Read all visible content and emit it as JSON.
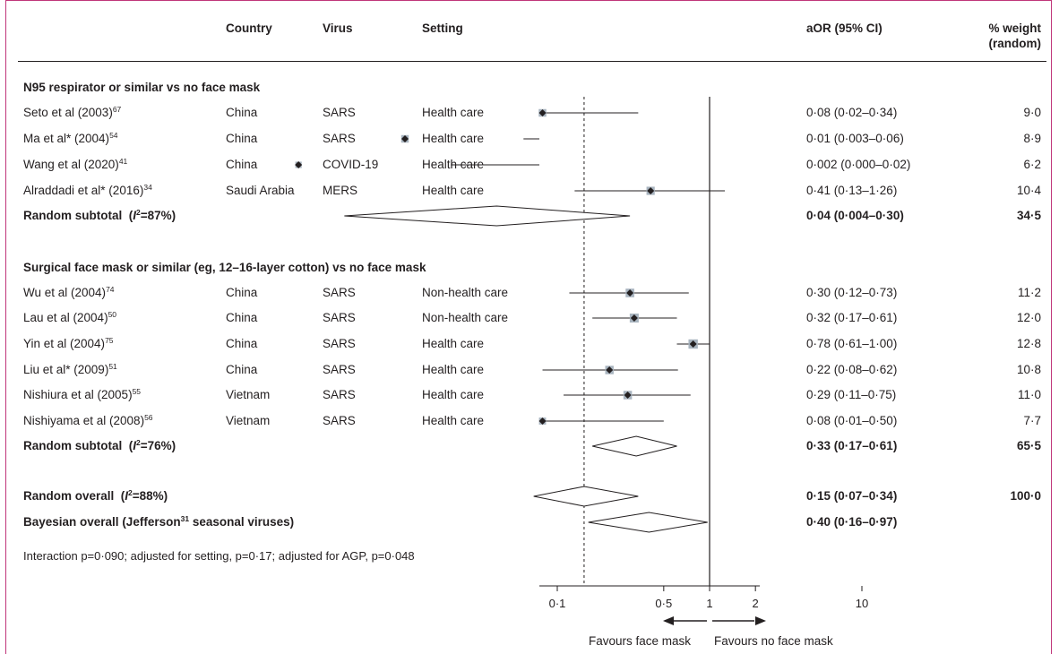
{
  "headers": {
    "country": "Country",
    "virus": "Virus",
    "setting": "Setting",
    "aor": "aOR (95% CI)",
    "weight_line1": "% weight",
    "weight_line2": "(random)"
  },
  "groups": [
    {
      "title": "N95 respirator or similar vs no face mask",
      "studies": [
        {
          "study": "Seto et al (2003)",
          "ref": "67",
          "country": "China",
          "virus": "SARS",
          "setting": "Health care",
          "aor_text": "0·08 (0·02–0·34)",
          "weight": "9·0"
        },
        {
          "study": "Ma et al* (2004)",
          "ref": "54",
          "country": "China",
          "virus": "SARS",
          "setting": "Health care",
          "aor_text": "0·01 (0·003–0·06)",
          "weight": "8·9"
        },
        {
          "study": "Wang et al (2020)",
          "ref": "41",
          "country": "China",
          "virus": "COVID-19",
          "setting": "Health care",
          "aor_text": "0·002 (0·000–0·02)",
          "weight": "6·2"
        },
        {
          "study": "Alraddadi et al* (2016)",
          "ref": "34",
          "country": "Saudi Arabia",
          "virus": "MERS",
          "setting": "Health care",
          "aor_text": "0·41 (0·13–1·26)",
          "weight": "10·4"
        }
      ],
      "subtotal": {
        "label": "Random subtotal",
        "i2": "=87%)",
        "aor_text": "0·04 (0·004–0·30)",
        "weight": "34·5"
      }
    },
    {
      "title": "Surgical face mask or similar (eg, 12–16-layer cotton) vs no face mask",
      "studies": [
        {
          "study": "Wu et al (2004)",
          "ref": "74",
          "country": "China",
          "virus": "SARS",
          "setting": "Non-health care",
          "aor_text": "0·30 (0·12–0·73)",
          "weight": "11·2"
        },
        {
          "study": "Lau et al (2004)",
          "ref": "50",
          "country": "China",
          "virus": "SARS",
          "setting": "Non-health care",
          "aor_text": "0·32 (0·17–0·61)",
          "weight": "12·0"
        },
        {
          "study": "Yin et al (2004)",
          "ref": "75",
          "country": "China",
          "virus": "SARS",
          "setting": "Health care",
          "aor_text": "0·78 (0·61–1·00)",
          "weight": "12·8"
        },
        {
          "study": "Liu et al* (2009)",
          "ref": "51",
          "country": "China",
          "virus": "SARS",
          "setting": "Health care",
          "aor_text": "0·22 (0·08–0·62)",
          "weight": "10·8"
        },
        {
          "study": "Nishiura et al (2005)",
          "ref": "55",
          "country": "Vietnam",
          "virus": "SARS",
          "setting": "Health care",
          "aor_text": "0·29 (0·11–0·75)",
          "weight": "11·0"
        },
        {
          "study": "Nishiyama et al (2008)",
          "ref": "56",
          "country": "Vietnam",
          "virus": "SARS",
          "setting": "Health care",
          "aor_text": "0·08 (0·01–0·50)",
          "weight": "7·7"
        }
      ],
      "subtotal": {
        "label": "Random subtotal",
        "i2": "=76%)",
        "aor_text": "0·33 (0·17–0·61)",
        "weight": "65·5"
      }
    }
  ],
  "overall": {
    "label": "Random overall",
    "i2": "=88%)",
    "aor_text": "0·15 (0·07–0·34)",
    "weight": "100·0"
  },
  "bayesian": {
    "label_pre": "Bayesian overall (Jefferson",
    "ref": "31",
    "label_post": " seasonal viruses)",
    "aor_text": "0·40 (0·16–0·97)"
  },
  "footnote": "Interaction p=0·090; adjusted for setting, p=0·17; adjusted for AGP, p=0·048",
  "axis": {
    "ticks": [
      "0·1",
      "0·5",
      "1",
      "2",
      "10"
    ],
    "favours_left": "Favours face mask",
    "favours_right": "Favours no face mask"
  },
  "colors": {
    "frame": "#c0357a",
    "box": "#a8b4bf",
    "ink": "#231f20"
  },
  "chart_data": {
    "type": "forest",
    "xscale": "log",
    "xlabel": "aOR",
    "null_value": 1,
    "reference_line": 0.15,
    "xticks": [
      0.1,
      0.5,
      1,
      2,
      10
    ],
    "rows": [
      {
        "study": "Seto et al (2003)",
        "kind": "study",
        "or": 0.08,
        "lo": 0.02,
        "hi": 0.34,
        "weight": 9.0
      },
      {
        "study": "Ma et al* (2004)",
        "kind": "study",
        "or": 0.01,
        "lo": 0.003,
        "hi": 0.06,
        "weight": 8.9
      },
      {
        "study": "Wang et al (2020)",
        "kind": "study",
        "or": 0.002,
        "lo": 0.0005,
        "hi": 0.02,
        "weight": 6.2
      },
      {
        "study": "Alraddadi et al* (2016)",
        "kind": "study",
        "or": 0.41,
        "lo": 0.13,
        "hi": 1.26,
        "weight": 10.4
      },
      {
        "study": "Random subtotal (N95)",
        "kind": "diamond",
        "or": 0.04,
        "lo": 0.004,
        "hi": 0.3,
        "weight": 34.5
      },
      {
        "study": "Wu et al (2004)",
        "kind": "study",
        "or": 0.3,
        "lo": 0.12,
        "hi": 0.73,
        "weight": 11.2
      },
      {
        "study": "Lau et al (2004)",
        "kind": "study",
        "or": 0.32,
        "lo": 0.17,
        "hi": 0.61,
        "weight": 12.0
      },
      {
        "study": "Yin et al (2004)",
        "kind": "study",
        "or": 0.78,
        "lo": 0.61,
        "hi": 1.0,
        "weight": 12.8
      },
      {
        "study": "Liu et al* (2009)",
        "kind": "study",
        "or": 0.22,
        "lo": 0.08,
        "hi": 0.62,
        "weight": 10.8
      },
      {
        "study": "Nishiura et al (2005)",
        "kind": "study",
        "or": 0.29,
        "lo": 0.11,
        "hi": 0.75,
        "weight": 11.0
      },
      {
        "study": "Nishiyama et al (2008)",
        "kind": "study",
        "or": 0.08,
        "lo": 0.01,
        "hi": 0.5,
        "weight": 7.7
      },
      {
        "study": "Random subtotal (surgical)",
        "kind": "diamond",
        "or": 0.33,
        "lo": 0.17,
        "hi": 0.61,
        "weight": 65.5
      },
      {
        "study": "Random overall",
        "kind": "diamond",
        "or": 0.15,
        "lo": 0.07,
        "hi": 0.34,
        "weight": 100.0
      },
      {
        "study": "Bayesian overall",
        "kind": "diamond",
        "or": 0.4,
        "lo": 0.16,
        "hi": 0.97
      }
    ]
  }
}
